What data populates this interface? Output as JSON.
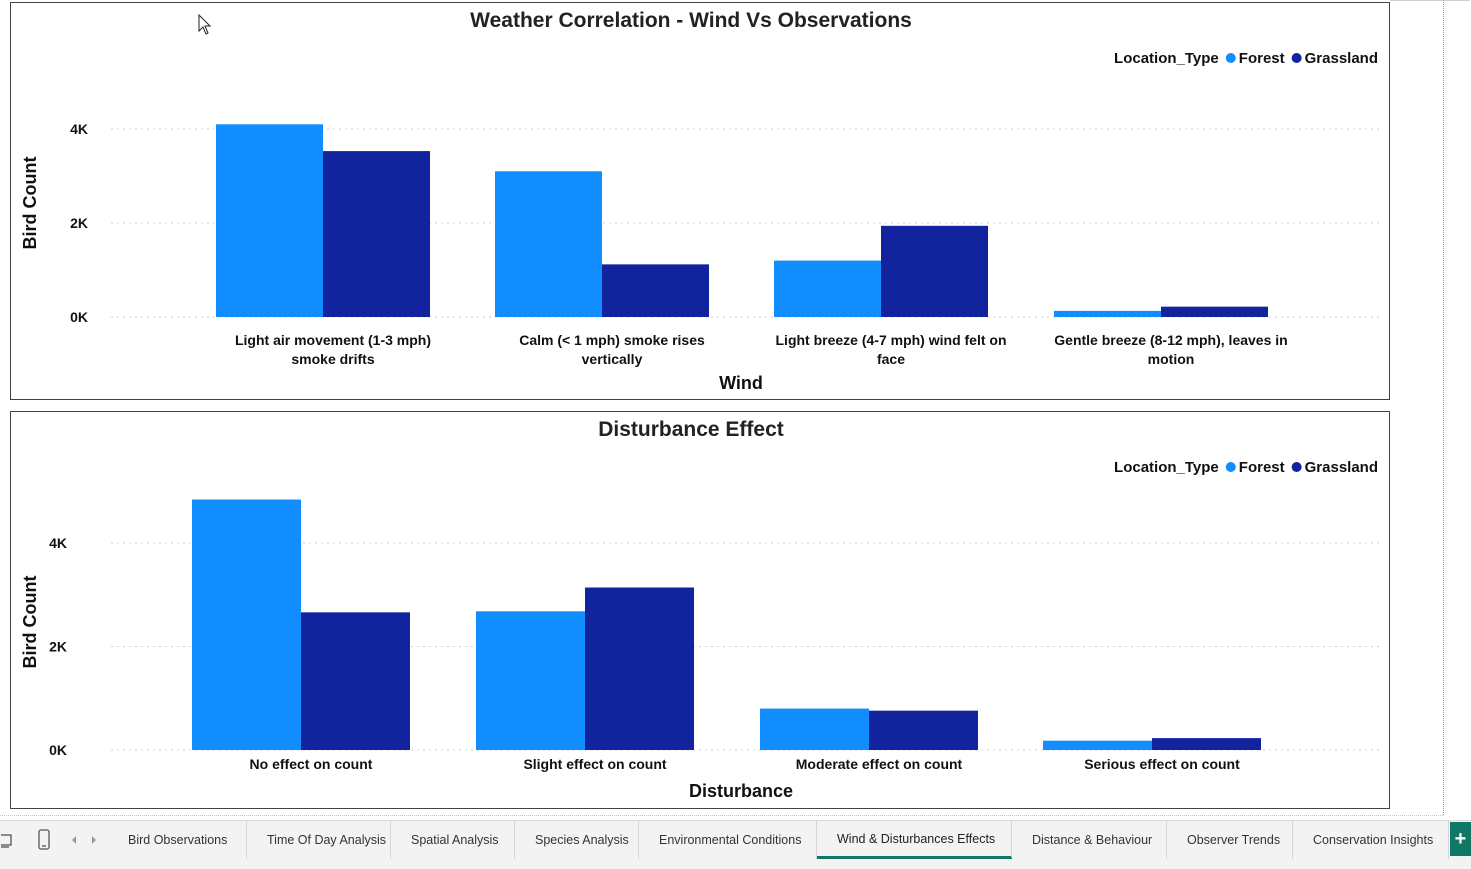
{
  "colors": {
    "forest": "#118DFF",
    "grassland": "#12239E",
    "active_tab_underline": "#117865"
  },
  "chart_data": [
    {
      "type": "bar",
      "title": "Weather Correlation - Wind Vs Observations",
      "legend_title": "Location_Type",
      "legend_position": "top-right",
      "xlabel": "Wind",
      "ylabel": "Bird Count",
      "categories": [
        [
          "Light air movement (1-3 mph)",
          "smoke drifts"
        ],
        [
          "Calm (< 1 mph) smoke rises",
          "vertically"
        ],
        [
          "Light breeze (4-7 mph) wind felt on",
          "face"
        ],
        [
          "Gentle breeze (8-12 mph), leaves in",
          "motion"
        ]
      ],
      "series": [
        {
          "name": "Forest",
          "values": [
            4100,
            3100,
            1200,
            130
          ]
        },
        {
          "name": "Grassland",
          "values": [
            3530,
            1120,
            1940,
            220
          ]
        }
      ],
      "yticks": [
        0,
        2000,
        4000
      ],
      "yticklabels": [
        "0K",
        "2K",
        "4K"
      ],
      "ylim": [
        0,
        4600
      ],
      "grid": true
    },
    {
      "type": "bar",
      "title": "Disturbance Effect",
      "legend_title": "Location_Type",
      "legend_position": "top-right",
      "xlabel": "Disturbance",
      "ylabel": "Bird Count",
      "categories": [
        [
          "No effect on count"
        ],
        [
          "Slight effect on count"
        ],
        [
          "Moderate effect on count"
        ],
        [
          "Serious effect on count"
        ]
      ],
      "series": [
        {
          "name": "Forest",
          "values": [
            4840,
            2680,
            800,
            180
          ]
        },
        {
          "name": "Grassland",
          "values": [
            2660,
            3140,
            760,
            230
          ]
        }
      ],
      "yticks": [
        0,
        2000,
        4000
      ],
      "yticklabels": [
        "0K",
        "2K",
        "4K"
      ],
      "ylim": [
        0,
        5400
      ],
      "grid": true
    }
  ],
  "tabs": [
    {
      "label": "Bird Observations",
      "active": false
    },
    {
      "label": "Time Of Day Analysis",
      "active": false
    },
    {
      "label": "Spatial Analysis",
      "active": false
    },
    {
      "label": "Species Analysis",
      "active": false
    },
    {
      "label": "Environmental Conditions",
      "active": false
    },
    {
      "label": "Wind & Disturbances Effects",
      "active": true
    },
    {
      "label": "Distance & Behaviour",
      "active": false
    },
    {
      "label": "Observer Trends",
      "active": false
    },
    {
      "label": "Conservation Insights",
      "active": false
    }
  ],
  "tabbar": {
    "prev_icon": "chevron-left-icon",
    "next_icon": "chevron-right-icon",
    "add_label": "+"
  }
}
